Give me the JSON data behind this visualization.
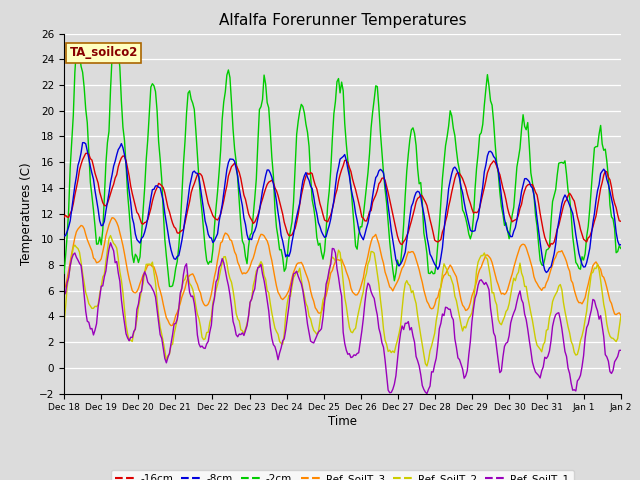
{
  "title": "Alfalfa Forerunner Temperatures",
  "xlabel": "Time",
  "ylabel": "Temperatures (C)",
  "annotation": "TA_soilco2",
  "ylim": [
    -2,
    26
  ],
  "figsize": [
    6.4,
    4.8
  ],
  "dpi": 100,
  "series_colors": {
    "-16cm": "#dd0000",
    "-8cm": "#0000dd",
    "-2cm": "#00cc00",
    "Ref_SoilT_3": "#ff8800",
    "Ref_SoilT_2": "#cccc00",
    "Ref_SoilT_1": "#9900bb"
  },
  "tick_labels": [
    "Dec 18",
    "Dec 19",
    "Dec 20",
    "Dec 21",
    "Dec 22",
    "Dec 23",
    "Dec 24",
    "Dec 25",
    "Dec 26",
    "Dec 27",
    "Dec 28",
    "Dec 29",
    "Dec 30",
    "Dec 31",
    "Jan 1",
    "Jan 2"
  ],
  "bg_color": "#dcdcdc",
  "fig_bg": "#dcdcdc"
}
